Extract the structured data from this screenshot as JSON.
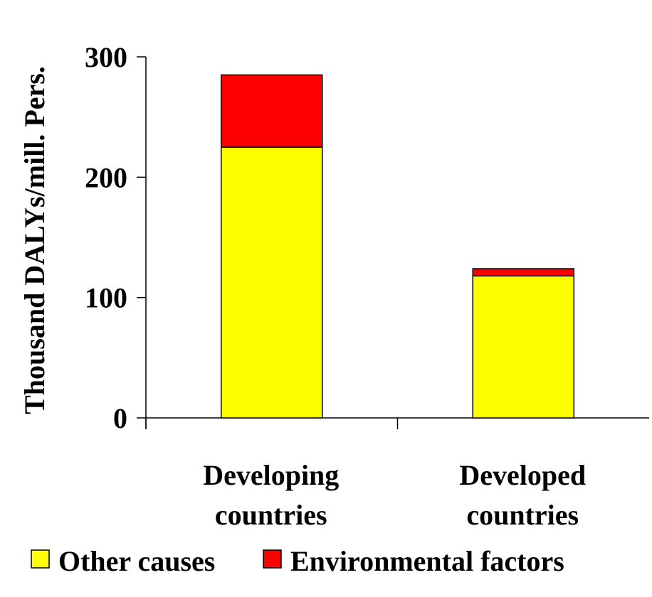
{
  "chart_data": {
    "type": "bar",
    "stacked": true,
    "categories": [
      [
        "Developing",
        "countries"
      ],
      [
        "Developed",
        "countries"
      ]
    ],
    "series": [
      {
        "name": "Other causes",
        "color": "#ffff00",
        "values": [
          225,
          118
        ]
      },
      {
        "name": "Environmental factors",
        "color": "#ff0000",
        "values": [
          60,
          6
        ]
      }
    ],
    "ylabel": "Thousand DALYs/mill. Pers.",
    "ylim": [
      0,
      300
    ],
    "yticks": [
      0,
      100,
      200,
      300
    ],
    "grid": false,
    "legend_position": "bottom"
  }
}
